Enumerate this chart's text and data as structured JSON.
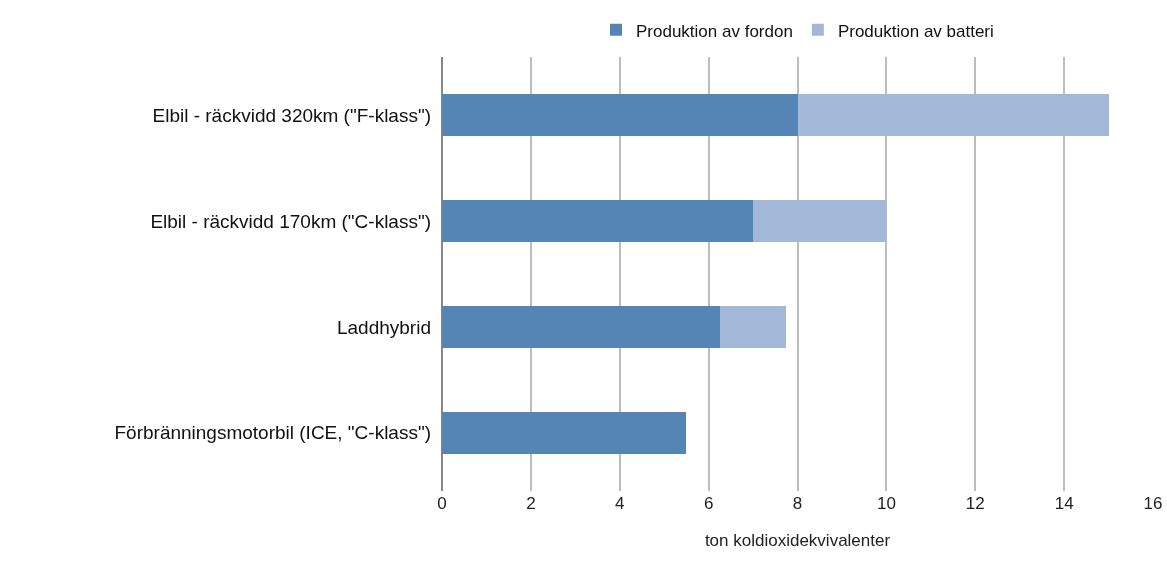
{
  "chart_data": {
    "type": "bar",
    "orientation": "horizontal",
    "stacked": true,
    "categories": [
      "Elbil - räckvidd 320km (\"F-klass\")",
      "Elbil - räckvidd 170km (\"C-klass\")",
      "Laddhybrid",
      "Förbränningsmotorbil (ICE, \"C-klass\")"
    ],
    "series": [
      {
        "name": "Produktion av fordon",
        "color": "#5585b5",
        "values": [
          8,
          7,
          6.25,
          5.5
        ]
      },
      {
        "name": "Produktion av batteri",
        "color": "#a3b8d9",
        "values": [
          7,
          3,
          1.5,
          null
        ]
      }
    ],
    "xlim": [
      0,
      16
    ],
    "xticks": [
      0,
      2,
      4,
      6,
      8,
      10,
      12,
      14,
      16
    ],
    "xlabel": "ton koldioxidekvivalenter",
    "grid": "x",
    "legend": "top"
  }
}
